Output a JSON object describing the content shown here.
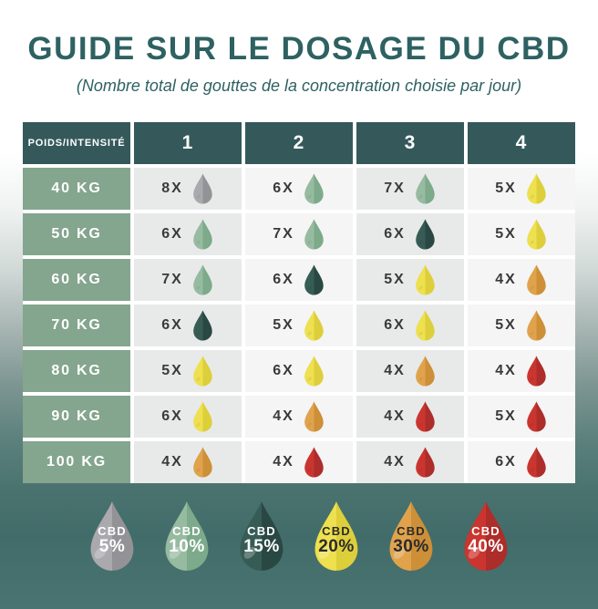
{
  "header": {
    "title": "GUIDE SUR LE DOSAGE DU CBD",
    "subtitle": "(Nombre total de gouttes de la concentration choisie par jour)"
  },
  "chart_data": {
    "type": "table",
    "title": "GUIDE SUR LE DOSAGE DU CBD",
    "subtitle": "(Nombre total de gouttes de la concentration choisie par jour)",
    "columns": [
      "POIDS/INTENSITÉ",
      "1",
      "2",
      "3",
      "4"
    ],
    "rows": [
      {
        "weight": "40 KG",
        "cells": [
          {
            "count": "8X",
            "cbd": "5"
          },
          {
            "count": "6X",
            "cbd": "10"
          },
          {
            "count": "7X",
            "cbd": "10"
          },
          {
            "count": "5X",
            "cbd": "20"
          }
        ]
      },
      {
        "weight": "50 KG",
        "cells": [
          {
            "count": "6X",
            "cbd": "10"
          },
          {
            "count": "7X",
            "cbd": "10"
          },
          {
            "count": "6X",
            "cbd": "15"
          },
          {
            "count": "5X",
            "cbd": "20"
          }
        ]
      },
      {
        "weight": "60 KG",
        "cells": [
          {
            "count": "7X",
            "cbd": "10"
          },
          {
            "count": "6X",
            "cbd": "15"
          },
          {
            "count": "5X",
            "cbd": "20"
          },
          {
            "count": "4X",
            "cbd": "30"
          }
        ]
      },
      {
        "weight": "70 KG",
        "cells": [
          {
            "count": "6X",
            "cbd": "15"
          },
          {
            "count": "5X",
            "cbd": "20"
          },
          {
            "count": "6X",
            "cbd": "20"
          },
          {
            "count": "5X",
            "cbd": "30"
          }
        ]
      },
      {
        "weight": "80 KG",
        "cells": [
          {
            "count": "5X",
            "cbd": "20"
          },
          {
            "count": "6X",
            "cbd": "20"
          },
          {
            "count": "4X",
            "cbd": "30"
          },
          {
            "count": "4X",
            "cbd": "40"
          }
        ]
      },
      {
        "weight": "90 KG",
        "cells": [
          {
            "count": "6X",
            "cbd": "20"
          },
          {
            "count": "4X",
            "cbd": "30"
          },
          {
            "count": "4X",
            "cbd": "40"
          },
          {
            "count": "5X",
            "cbd": "40"
          }
        ]
      },
      {
        "weight": "100 KG",
        "cells": [
          {
            "count": "4X",
            "cbd": "30"
          },
          {
            "count": "4X",
            "cbd": "40"
          },
          {
            "count": "4X",
            "cbd": "40"
          },
          {
            "count": "6X",
            "cbd": "40"
          }
        ]
      }
    ],
    "legend": [
      {
        "line1": "CBD",
        "line2": "5%",
        "cbd": "5",
        "text_color": "#ffffff"
      },
      {
        "line1": "CBD",
        "line2": "10%",
        "cbd": "10",
        "text_color": "#ffffff"
      },
      {
        "line1": "CBD",
        "line2": "15%",
        "cbd": "15",
        "text_color": "#ffffff"
      },
      {
        "line1": "CBD",
        "line2": "20%",
        "cbd": "20",
        "text_color": "#2b2b2b"
      },
      {
        "line1": "CBD",
        "line2": "30%",
        "cbd": "30",
        "text_color": "#2b2b2b"
      },
      {
        "line1": "CBD",
        "line2": "40%",
        "cbd": "40",
        "text_color": "#ffffff"
      }
    ]
  },
  "drop_colors": {
    "5": {
      "light": "#aaaaae",
      "dark": "#939397"
    },
    "10": {
      "light": "#97bba1",
      "dark": "#7caa8a"
    },
    "15": {
      "light": "#375c56",
      "dark": "#2a4843"
    },
    "20": {
      "light": "#eee04e",
      "dark": "#ddcf3b"
    },
    "30": {
      "light": "#e0a34c",
      "dark": "#cd8f38"
    },
    "40": {
      "light": "#cb352f",
      "dark": "#ac2d2a"
    }
  },
  "theme": {
    "title_color": "#2e6162",
    "header_bg": "#35595b",
    "header_text": "#ffffff",
    "label_bg": "#84a58e",
    "label_text": "#ffffff",
    "cell_bg_a": "#e8eae9",
    "cell_bg_b": "#f4f5f4",
    "count_color": "#3a3a3a",
    "gap_color": "#ffffff",
    "bg_bottom": "#426c69"
  }
}
